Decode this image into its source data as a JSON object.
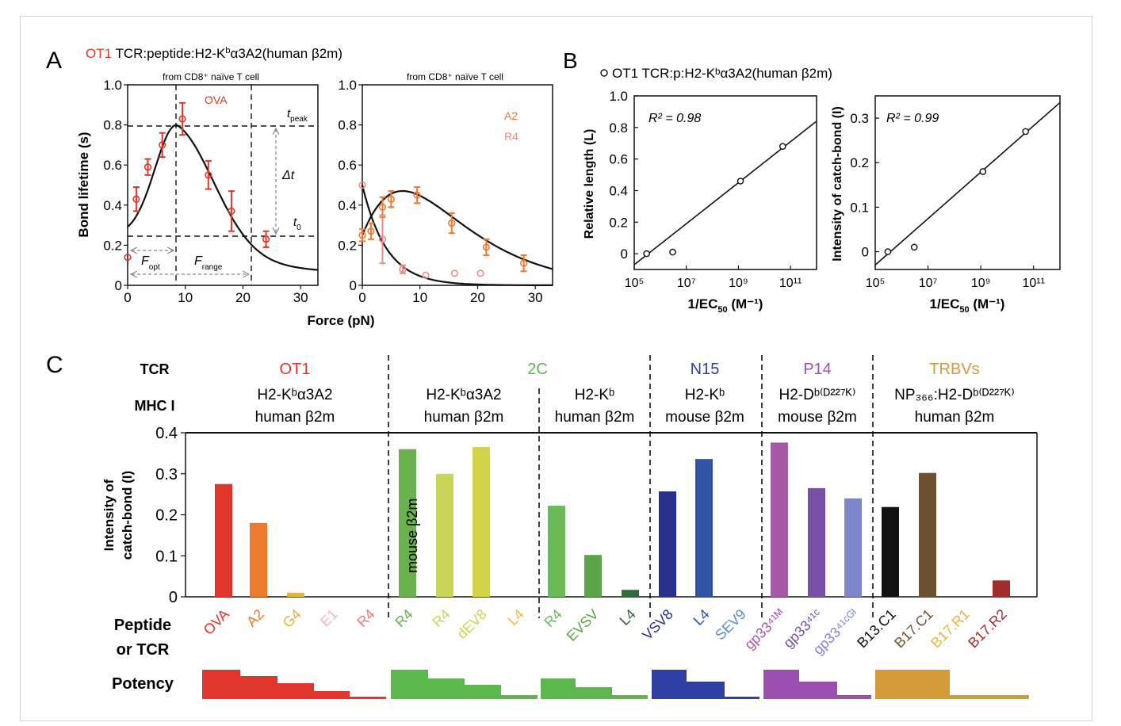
{
  "panelA": {
    "letter": "A",
    "title_tcr": "OT1",
    "title_rest": " TCR:peptide:H2-K",
    "title_sup": "b",
    "title_tail": "α3A2(human β2m)",
    "ylabel": "Bond lifetime (s)",
    "xlabel": "Force (pN)",
    "left_sub": "from CD8⁺ naïve T cell",
    "right_sub": "from CD8⁺ naïve T cell",
    "ova_label": "OVA",
    "a2_label": "A2",
    "r4_label": "R4",
    "t_peak": "t",
    "t_peak_sub": "peak",
    "delta_t": "Δt",
    "t0": "t",
    "t0_sub": "0",
    "f_opt": "F",
    "f_opt_sub": "opt",
    "f_range": "F",
    "f_range_sub": "range",
    "yticks": [
      "0",
      "0.2",
      "0.4",
      "0.6",
      "0.8",
      "1.0"
    ],
    "xticks": [
      "0",
      "10",
      "20",
      "30"
    ],
    "colors": {
      "ova": "#e0352b",
      "a2": "#ec7a2e",
      "r4": "#ef8a86",
      "curve": "#111111"
    }
  },
  "panelB": {
    "letter": "B",
    "legend": "OT1 TCR:p:H2-Kᵇα3A2(human β2m)",
    "left_ylabel": "Relative length (L)",
    "right_ylabel": "Intensity of catch-bond (I)",
    "xlabel_left": "1/EC",
    "xlabel_sub": "50",
    "xlabel_unit": " (M⁻¹)",
    "r2_left": "R² = 0.98",
    "r2_right": "R² = 0.99",
    "left_yticks": [
      "0",
      "0.2",
      "0.4",
      "0.6",
      "0.8",
      "1.0"
    ],
    "right_yticks": [
      "0",
      "0.1",
      "0.2",
      "0.3"
    ],
    "xticks": [
      "10⁵",
      "10⁷",
      "10⁹",
      "10¹¹"
    ]
  },
  "panelC": {
    "letter": "C",
    "row_tcr": "TCR",
    "row_mhc": "MHC I",
    "ylabel_line1": "Intensity of",
    "ylabel_line2": "catch-bond (I)",
    "peptide_label_line1": "Peptide",
    "peptide_label_line2": "or TCR",
    "potency_label": "Potency",
    "mouse_b2m": "mouse β2m",
    "yticks": [
      "0",
      "0.1",
      "0.2",
      "0.3",
      "0.4"
    ],
    "groups": [
      {
        "tcr": "OT1",
        "color": "#e0352b",
        "mhc1": "H2-Kᵇα3A2",
        "mhc2": "human β2m"
      },
      {
        "tcr": "2C",
        "color": "#5cb84d",
        "mhc1": "H2-Kᵇα3A2",
        "mhc2": "human β2m"
      },
      {
        "tcr": "",
        "color": "#5cb84d",
        "mhc1": "H2-Kᵇ",
        "mhc2": "human β2m"
      },
      {
        "tcr": "N15",
        "color": "#2d3fa0",
        "mhc1": "H2-Kᵇ",
        "mhc2": "mouse β2m"
      },
      {
        "tcr": "P14",
        "color": "#9b4fb0",
        "mhc1": "H2-Dᵇ⁽ᴰ²²⁷ᴷ⁾",
        "mhc2": "mouse β2m"
      },
      {
        "tcr": "TRBVs",
        "color": "#d39b3a",
        "mhc1": "NP₃₆₆:H2-Dᵇ⁽ᴰ²²⁷ᴷ⁾",
        "mhc2": "human β2m"
      }
    ]
  },
  "chart_data": [
    {
      "type": "scatter",
      "title": "OT1 TCR:peptide:H2-Kᵇα3A2(human β2m)",
      "subtitle": "from CD8⁺ naïve T cell",
      "xlabel": "Force (pN)",
      "ylabel": "Bond lifetime (s)",
      "xlim": [
        0,
        33
      ],
      "ylim": [
        0,
        1.0
      ],
      "series": [
        {
          "name": "OVA",
          "x": [
            0,
            1.5,
            3.5,
            6,
            9.5,
            14,
            18,
            24
          ],
          "y": [
            0.14,
            0.43,
            0.59,
            0.7,
            0.83,
            0.55,
            0.37,
            0.23
          ],
          "err": [
            0.0,
            0.06,
            0.04,
            0.06,
            0.08,
            0.07,
            0.1,
            0.04
          ]
        }
      ]
    },
    {
      "type": "scatter",
      "subtitle": "from CD8⁺ naïve T cell",
      "xlabel": "Force (pN)",
      "xlim": [
        0,
        33
      ],
      "ylim": [
        0,
        1.0
      ],
      "series": [
        {
          "name": "A2",
          "x": [
            0,
            1.5,
            3.5,
            5,
            9.5,
            15.5,
            21.5,
            28
          ],
          "y": [
            0.25,
            0.27,
            0.39,
            0.43,
            0.45,
            0.31,
            0.19,
            0.11
          ],
          "err": [
            0.03,
            0.04,
            0.05,
            0.04,
            0.04,
            0.05,
            0.04,
            0.04
          ]
        },
        {
          "name": "R4",
          "x": [
            0,
            3.5,
            7,
            11,
            16,
            20.5
          ],
          "y": [
            0.5,
            0.23,
            0.08,
            0.05,
            0.06,
            0.06
          ],
          "err": [
            0.0,
            0.12,
            0.02,
            0.0,
            0.0,
            0.0
          ]
        }
      ]
    },
    {
      "type": "scatter",
      "legend": "OT1 TCR:p:H2-Kᵇα3A2(human β2m)",
      "xlabel": "1/EC50 (M⁻¹)",
      "ylabel": "Relative length (L)",
      "xscale": "log",
      "xlim": [
        100000,
        1000000000000
      ],
      "ylim": [
        -0.1,
        1.0
      ],
      "annotation": "R² = 0.98",
      "series": [
        {
          "x": [
            300000,
            3000000,
            1200000000,
            50000000000
          ],
          "y": [
            0.0,
            0.01,
            0.46,
            0.68
          ]
        }
      ]
    },
    {
      "type": "scatter",
      "xlabel": "1/EC50 (M⁻¹)",
      "ylabel": "Intensity of catch-bond (I)",
      "xscale": "log",
      "xlim": [
        100000,
        1000000000000
      ],
      "ylim": [
        -0.04,
        0.35
      ],
      "annotation": "R² = 0.99",
      "series": [
        {
          "x": [
            300000,
            3000000,
            1200000000,
            50000000000
          ],
          "y": [
            0.0,
            0.01,
            0.18,
            0.27
          ]
        }
      ]
    },
    {
      "type": "bar",
      "ylabel": "Intensity of catch-bond (I)",
      "ylim": [
        0,
        0.4
      ],
      "categories": [
        "OVA",
        "A2",
        "G4",
        "E1",
        "R4",
        "R4",
        "R4",
        "dEV8",
        "L4",
        "R4",
        "EVSV",
        "L4",
        "VSV8",
        "L4",
        "SEV9",
        "gp33⁴¹ᴹ",
        "gp33⁴¹ᶜ",
        "gp33⁴¹ᶜᴳᴵ",
        "B13.C1",
        "B17.C1",
        "B17.R1",
        "B17.R2"
      ],
      "values": [
        0.275,
        0.18,
        0.01,
        0,
        0,
        0.36,
        0.3,
        0.365,
        0,
        0.222,
        0.102,
        0.017,
        0.257,
        0.336,
        0,
        0.376,
        0.265,
        0.24,
        0.219,
        0.302,
        0,
        0.04
      ],
      "colors": [
        "#e0352b",
        "#ec7a2e",
        "#e8b23d",
        "#f1b7c8",
        "#e8807a",
        "#6ab04c",
        "#c9d65a",
        "#d3d34a",
        "#e9c04a",
        "#6abb57",
        "#5aa548",
        "#2e6d3b",
        "#27318d",
        "#3353a8",
        "#5c89cf",
        "#a657a8",
        "#7a4fa6",
        "#7f87cc",
        "#111111",
        "#6e5230",
        "#e6b63a",
        "#a02c2c"
      ]
    }
  ]
}
